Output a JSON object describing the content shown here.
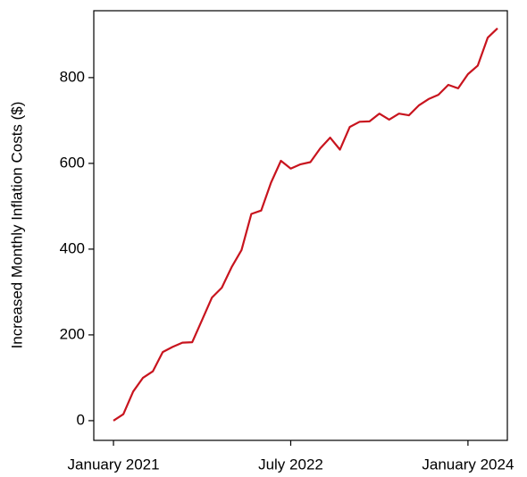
{
  "chart_data": {
    "type": "line",
    "y_label": "Increased Monthly Inflation Costs ($)",
    "x": [
      "2021-01",
      "2021-02",
      "2021-03",
      "2021-04",
      "2021-05",
      "2021-06",
      "2021-07",
      "2021-08",
      "2021-09",
      "2021-10",
      "2021-11",
      "2021-12",
      "2022-01",
      "2022-02",
      "2022-03",
      "2022-04",
      "2022-05",
      "2022-06",
      "2022-07",
      "2022-08",
      "2022-09",
      "2022-10",
      "2022-11",
      "2022-12",
      "2023-01",
      "2023-02",
      "2023-03",
      "2023-04",
      "2023-05",
      "2023-06",
      "2023-07",
      "2023-08",
      "2023-09",
      "2023-10",
      "2023-11",
      "2023-12",
      "2024-01",
      "2024-02",
      "2024-03",
      "2024-04"
    ],
    "series": [
      {
        "color": "#c8141e",
        "values": [
          0,
          15,
          68,
          100,
          115,
          160,
          172,
          182,
          183,
          235,
          287,
          310,
          358,
          398,
          482,
          490,
          555,
          606,
          588,
          598,
          603,
          635,
          660,
          632,
          685,
          697,
          698,
          716,
          702,
          716,
          712,
          735,
          750,
          760,
          783,
          775,
          808,
          828,
          893,
          915
        ]
      }
    ],
    "xlim": [
      "2020-11",
      "2024-05"
    ],
    "xticks": [
      {
        "value": "2021-01",
        "label": "January 2021"
      },
      {
        "value": "2022-07",
        "label": "July 2022"
      },
      {
        "value": "2024-01",
        "label": "January 2024"
      }
    ],
    "ylim": [
      -46,
      956
    ],
    "yticks": [
      0,
      200,
      400,
      600,
      800
    ],
    "grid": false
  }
}
